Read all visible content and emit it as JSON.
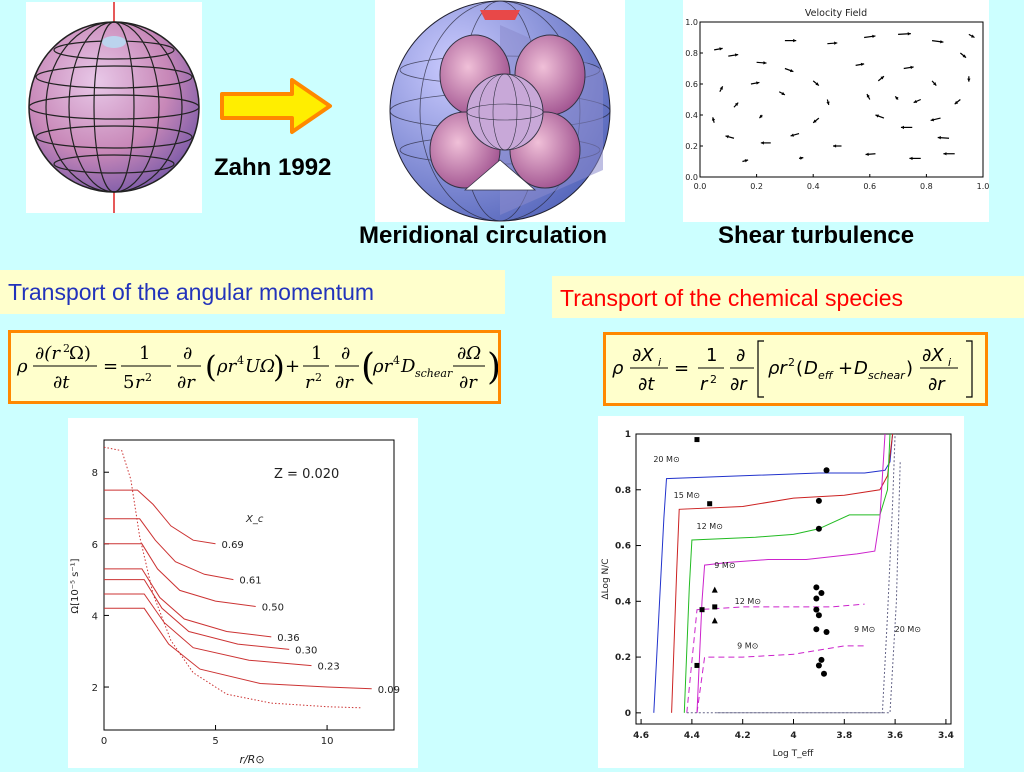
{
  "labels": {
    "zahn": "Zahn 1992",
    "meridional": "Meridional circulation",
    "shear": "Shear turbulence",
    "angular_header": "Transport of the angular momentum",
    "chemical_header": "Transport of the chemical species"
  },
  "colors": {
    "background": "#ccffff",
    "angular_header_text": "#2233bb",
    "chemical_header_text": "#ff0000",
    "box_border": "#ff8800",
    "box_fill": "#ffffcc",
    "arrow_fill": "#ffee00",
    "arrow_stroke": "#ff8800"
  },
  "equations": {
    "angular": "ρ ∂(r²Ω)/∂t = 1/(5r²) ∂/∂r (ρ r⁴ U Ω) + 1/r² ∂/∂r (ρ r⁴ D_schear ∂Ω/∂r)",
    "chemical": "ρ ∂X_i/∂t = 1/r² ∂/∂r [ ρ r² (D_eff + D_schear) ∂X_i/∂r ]"
  },
  "chart_data": [
    {
      "type": "scatter",
      "title": "Velocity Field",
      "xlim": [
        0.0,
        1.0
      ],
      "ylim": [
        0.0,
        1.0
      ],
      "x_ticks": [
        "0.0",
        "0.2",
        "0.4",
        "0.6",
        "0.8",
        "1.0"
      ],
      "y_ticks": [
        "0.0",
        "0.2",
        "0.4",
        "0.6",
        "0.8",
        "1.0"
      ],
      "vectors": [
        {
          "x": 0.05,
          "y": 0.82,
          "dx": 0.03,
          "dy": 0.01
        },
        {
          "x": 0.1,
          "y": 0.78,
          "dx": 0.035,
          "dy": 0.01
        },
        {
          "x": 0.2,
          "y": 0.74,
          "dx": 0.035,
          "dy": -0.005
        },
        {
          "x": 0.3,
          "y": 0.7,
          "dx": 0.03,
          "dy": -0.02
        },
        {
          "x": 0.4,
          "y": 0.62,
          "dx": 0.02,
          "dy": -0.03
        },
        {
          "x": 0.45,
          "y": 0.5,
          "dx": 0.005,
          "dy": -0.035
        },
        {
          "x": 0.42,
          "y": 0.38,
          "dx": -0.02,
          "dy": -0.03
        },
        {
          "x": 0.35,
          "y": 0.28,
          "dx": -0.03,
          "dy": -0.015
        },
        {
          "x": 0.25,
          "y": 0.22,
          "dx": -0.035,
          "dy": 0.0
        },
        {
          "x": 0.12,
          "y": 0.25,
          "dx": -0.03,
          "dy": 0.015
        },
        {
          "x": 0.05,
          "y": 0.35,
          "dx": -0.005,
          "dy": 0.035
        },
        {
          "x": 0.07,
          "y": 0.55,
          "dx": 0.01,
          "dy": 0.035
        },
        {
          "x": 0.12,
          "y": 0.45,
          "dx": 0.015,
          "dy": 0.03
        },
        {
          "x": 0.18,
          "y": 0.6,
          "dx": 0.03,
          "dy": 0.01
        },
        {
          "x": 0.28,
          "y": 0.55,
          "dx": 0.02,
          "dy": -0.02
        },
        {
          "x": 0.22,
          "y": 0.4,
          "dx": -0.01,
          "dy": -0.02
        },
        {
          "x": 0.3,
          "y": 0.88,
          "dx": 0.04,
          "dy": 0.0
        },
        {
          "x": 0.45,
          "y": 0.86,
          "dx": 0.035,
          "dy": 0.005
        },
        {
          "x": 0.58,
          "y": 0.9,
          "dx": 0.04,
          "dy": 0.01
        },
        {
          "x": 0.7,
          "y": 0.92,
          "dx": 0.045,
          "dy": 0.005
        },
        {
          "x": 0.82,
          "y": 0.88,
          "dx": 0.04,
          "dy": -0.01
        },
        {
          "x": 0.92,
          "y": 0.8,
          "dx": 0.02,
          "dy": -0.03
        },
        {
          "x": 0.95,
          "y": 0.65,
          "dx": 0.0,
          "dy": -0.035
        },
        {
          "x": 0.92,
          "y": 0.5,
          "dx": -0.02,
          "dy": -0.03
        },
        {
          "x": 0.85,
          "y": 0.38,
          "dx": -0.035,
          "dy": -0.015
        },
        {
          "x": 0.75,
          "y": 0.32,
          "dx": -0.04,
          "dy": 0.0
        },
        {
          "x": 0.65,
          "y": 0.38,
          "dx": -0.03,
          "dy": 0.02
        },
        {
          "x": 0.6,
          "y": 0.5,
          "dx": -0.01,
          "dy": 0.035
        },
        {
          "x": 0.63,
          "y": 0.62,
          "dx": 0.02,
          "dy": 0.03
        },
        {
          "x": 0.72,
          "y": 0.7,
          "dx": 0.035,
          "dy": 0.01
        },
        {
          "x": 0.82,
          "y": 0.62,
          "dx": 0.015,
          "dy": -0.03
        },
        {
          "x": 0.78,
          "y": 0.5,
          "dx": -0.025,
          "dy": -0.02
        },
        {
          "x": 0.7,
          "y": 0.5,
          "dx": -0.01,
          "dy": 0.02
        },
        {
          "x": 0.55,
          "y": 0.72,
          "dx": 0.03,
          "dy": 0.01
        },
        {
          "x": 0.5,
          "y": 0.2,
          "dx": -0.03,
          "dy": 0.0
        },
        {
          "x": 0.62,
          "y": 0.15,
          "dx": -0.035,
          "dy": -0.005
        },
        {
          "x": 0.78,
          "y": 0.12,
          "dx": -0.04,
          "dy": 0.0
        },
        {
          "x": 0.9,
          "y": 0.15,
          "dx": -0.04,
          "dy": 0.0
        },
        {
          "x": 0.88,
          "y": 0.25,
          "dx": -0.04,
          "dy": 0.005
        },
        {
          "x": 0.15,
          "y": 0.1,
          "dx": 0.02,
          "dy": 0.01
        },
        {
          "x": 0.35,
          "y": 0.12,
          "dx": 0.015,
          "dy": 0.005
        },
        {
          "x": 0.95,
          "y": 0.92,
          "dx": 0.02,
          "dy": -0.02
        }
      ]
    },
    {
      "type": "line",
      "annotation": "Z  =  0.020",
      "xlabel": "r/R⊙",
      "ylabel": "Ω[10⁻⁵ s⁻¹]",
      "series_label_header": "X_c",
      "xlim": [
        0,
        13
      ],
      "ylim": [
        0.8,
        8.9
      ],
      "x_ticks": [
        0,
        5,
        10
      ],
      "y_ticks": [
        2,
        4,
        6,
        8
      ],
      "series": [
        {
          "name": "0.69",
          "points": [
            [
              0,
              7.5
            ],
            [
              1.5,
              7.5
            ],
            [
              2.2,
              7.1
            ],
            [
              3,
              6.5
            ],
            [
              4,
              6.1
            ],
            [
              5,
              6.0
            ]
          ]
        },
        {
          "name": "0.61",
          "points": [
            [
              0,
              6.7
            ],
            [
              1.6,
              6.7
            ],
            [
              2.3,
              6.1
            ],
            [
              3.2,
              5.5
            ],
            [
              4.5,
              5.15
            ],
            [
              5.8,
              5.0
            ]
          ]
        },
        {
          "name": "0.50",
          "points": [
            [
              0,
              6.0
            ],
            [
              1.7,
              6.0
            ],
            [
              2.4,
              5.3
            ],
            [
              3.4,
              4.7
            ],
            [
              5,
              4.4
            ],
            [
              6.8,
              4.25
            ]
          ]
        },
        {
          "name": "0.36",
          "points": [
            [
              0,
              5.3
            ],
            [
              1.7,
              5.3
            ],
            [
              2.5,
              4.5
            ],
            [
              3.6,
              3.9
            ],
            [
              5.5,
              3.55
            ],
            [
              7.5,
              3.4
            ]
          ]
        },
        {
          "name": "0.30",
          "points": [
            [
              0,
              5.0
            ],
            [
              1.8,
              5.0
            ],
            [
              2.6,
              4.2
            ],
            [
              3.8,
              3.55
            ],
            [
              6,
              3.2
            ],
            [
              8.3,
              3.05
            ]
          ]
        },
        {
          "name": "0.23",
          "points": [
            [
              0,
              4.6
            ],
            [
              1.8,
              4.6
            ],
            [
              2.7,
              3.8
            ],
            [
              4,
              3.1
            ],
            [
              6.5,
              2.75
            ],
            [
              9.3,
              2.6
            ]
          ]
        },
        {
          "name": "0.09",
          "points": [
            [
              0,
              4.2
            ],
            [
              1.8,
              4.2
            ],
            [
              2.9,
              3.2
            ],
            [
              4.3,
              2.5
            ],
            [
              7,
              2.1
            ],
            [
              10,
              2.0
            ],
            [
              12,
              1.95
            ]
          ]
        }
      ],
      "dotted_series": {
        "points": [
          [
            0,
            8.7
          ],
          [
            0.8,
            8.6
          ],
          [
            1.2,
            7.8
          ],
          [
            1.6,
            6.2
          ],
          [
            2.2,
            4.6
          ],
          [
            3,
            3.3
          ],
          [
            4,
            2.4
          ],
          [
            5.5,
            1.8
          ],
          [
            7.5,
            1.55
          ],
          [
            10,
            1.45
          ],
          [
            11.5,
            1.42
          ]
        ]
      }
    },
    {
      "type": "line",
      "xlabel": "Log T_eff",
      "ylabel": "ΔLog N/C",
      "xlim": [
        4.62,
        3.38
      ],
      "ylim": [
        -0.04,
        1.0
      ],
      "x_ticks": [
        4.6,
        4.4,
        4.2,
        4.0,
        3.8,
        3.6,
        3.4
      ],
      "y_ticks": [
        0,
        0.2,
        0.4,
        0.6,
        0.8,
        1
      ],
      "x_tick_labels": [
        "4.6",
        "4.4",
        "4.2",
        "4",
        "3.8",
        "3.6",
        "3.4"
      ],
      "y_tick_labels": [
        "0",
        "0.2",
        "0.4",
        "0.6",
        "0.8",
        "1"
      ],
      "series": [
        {
          "name": "20 M⊙",
          "color": "#2233cc",
          "dash": "",
          "points": [
            [
              4.55,
              0
            ],
            [
              4.51,
              0.7
            ],
            [
              4.5,
              0.84
            ],
            [
              4.2,
              0.85
            ],
            [
              3.9,
              0.86
            ],
            [
              3.72,
              0.86
            ],
            [
              3.64,
              0.87
            ],
            [
              3.62,
              0.9
            ],
            [
              3.61,
              1.0
            ]
          ]
        },
        {
          "name": "15 M⊙",
          "color": "#cc2222",
          "dash": "",
          "points": [
            [
              4.48,
              0
            ],
            [
              4.46,
              0.5
            ],
            [
              4.45,
              0.73
            ],
            [
              4.2,
              0.74
            ],
            [
              4.0,
              0.77
            ],
            [
              3.8,
              0.78
            ],
            [
              3.66,
              0.8
            ],
            [
              3.63,
              0.85
            ],
            [
              3.61,
              1.0
            ]
          ]
        },
        {
          "name": "12 M⊙",
          "color": "#22bb22",
          "dash": "",
          "points": [
            [
              4.43,
              0
            ],
            [
              4.41,
              0.45
            ],
            [
              4.4,
              0.62
            ],
            [
              4.15,
              0.63
            ],
            [
              4.0,
              0.64
            ],
            [
              3.9,
              0.66
            ],
            [
              3.78,
              0.71
            ],
            [
              3.66,
              0.71
            ],
            [
              3.63,
              0.8
            ],
            [
              3.62,
              1.0
            ]
          ]
        },
        {
          "name": "9 M⊙",
          "color": "#cc22cc",
          "dash": "",
          "points": [
            [
              4.38,
              0
            ],
            [
              4.36,
              0.4
            ],
            [
              4.35,
              0.53
            ],
            [
              4.25,
              0.54
            ],
            [
              4.1,
              0.55
            ],
            [
              3.95,
              0.55
            ],
            [
              3.75,
              0.57
            ],
            [
              3.68,
              0.58
            ],
            [
              3.66,
              0.7
            ],
            [
              3.64,
              1.0
            ]
          ]
        },
        {
          "name": "12 M⊙",
          "color": "#cc22cc",
          "dash": "6,4",
          "points": [
            [
              4.42,
              0.0
            ],
            [
              4.38,
              0.37
            ],
            [
              4.2,
              0.38
            ],
            [
              4.0,
              0.38
            ],
            [
              3.85,
              0.38
            ],
            [
              3.72,
              0.39
            ]
          ]
        },
        {
          "name": "9 M⊙",
          "color": "#cc22cc",
          "dash": "6,4",
          "points": [
            [
              4.38,
              0.0
            ],
            [
              4.35,
              0.2
            ],
            [
              4.2,
              0.2
            ],
            [
              4.0,
              0.21
            ],
            [
              3.8,
              0.24
            ],
            [
              3.72,
              0.24
            ]
          ]
        },
        {
          "name": "9 M⊙",
          "color": "#666688",
          "dash": "2,2",
          "points": [
            [
              4.3,
              0.0
            ],
            [
              4.0,
              0.0
            ],
            [
              3.65,
              0.0
            ],
            [
              3.63,
              0.35
            ],
            [
              3.61,
              0.75
            ],
            [
              3.6,
              1.0
            ]
          ]
        },
        {
          "name": "20 M⊙",
          "color": "#666688",
          "dash": "2,2",
          "points": [
            [
              4.42,
              0.0
            ],
            [
              4.0,
              0.0
            ],
            [
              3.62,
              0.0
            ],
            [
              3.595,
              0.4
            ],
            [
              3.58,
              0.9
            ]
          ]
        }
      ],
      "markers": {
        "circles": [
          [
            3.87,
            0.87
          ],
          [
            3.9,
            0.76
          ],
          [
            3.9,
            0.66
          ],
          [
            3.91,
            0.45
          ],
          [
            3.89,
            0.43
          ],
          [
            3.91,
            0.41
          ],
          [
            3.91,
            0.37
          ],
          [
            3.9,
            0.35
          ],
          [
            3.91,
            0.3
          ],
          [
            3.87,
            0.29
          ],
          [
            3.89,
            0.19
          ],
          [
            3.9,
            0.17
          ],
          [
            3.88,
            0.14
          ]
        ],
        "squares": [
          [
            4.38,
            0.98
          ],
          [
            4.33,
            0.75
          ],
          [
            4.36,
            0.37
          ],
          [
            4.31,
            0.38
          ],
          [
            4.38,
            0.17
          ]
        ],
        "triangles": [
          [
            4.31,
            0.44
          ],
          [
            4.31,
            0.33
          ]
        ]
      }
    }
  ]
}
